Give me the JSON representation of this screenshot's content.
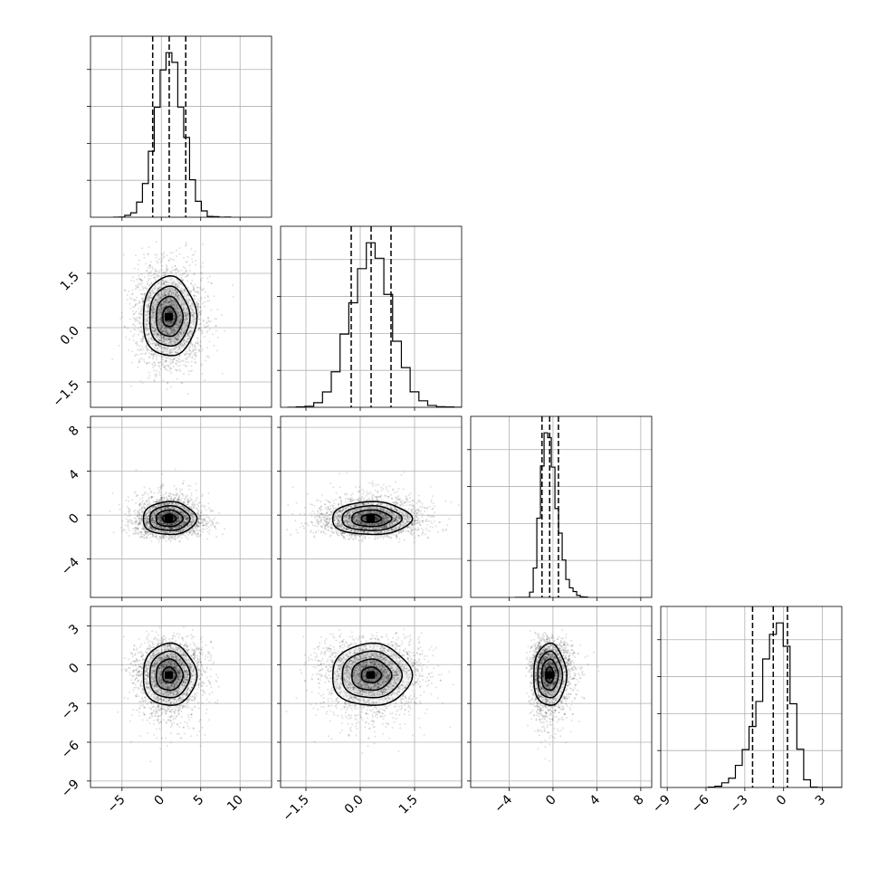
{
  "chart_data": {
    "type": "corner",
    "title": "",
    "variables": [
      {
        "range": [
          -9,
          14
        ],
        "ticks": [
          -5,
          0,
          5,
          10
        ],
        "tick_labels": [
          "−5",
          "0",
          "5",
          "10"
        ],
        "mean": 1.0,
        "sd": 1.7,
        "skew": 0,
        "quantiles": [
          -1.1,
          1.0,
          3.1
        ]
      },
      {
        "range": [
          -2.2,
          2.8
        ],
        "ticks": [
          -1.5,
          0.0,
          1.5
        ],
        "tick_labels": [
          "−1.5",
          "0.0",
          "1.5"
        ],
        "mean": 0.3,
        "sd": 0.55,
        "skew": 0,
        "quantiles": [
          -0.25,
          0.3,
          0.85
        ]
      },
      {
        "range": [
          -7.5,
          9
        ],
        "ticks": [
          -4,
          0,
          4,
          8
        ],
        "tick_labels": [
          "−4",
          "0",
          "4",
          "8"
        ],
        "mean": -0.3,
        "sd": 0.75,
        "skew": 0.4,
        "quantiles": [
          -1.0,
          -0.3,
          0.5
        ]
      },
      {
        "range": [
          -9.5,
          4.5
        ],
        "ticks": [
          -9,
          -6,
          -3,
          0,
          3
        ],
        "tick_labels": [
          "−9",
          "−6",
          "−3",
          "0",
          "3"
        ],
        "mean": -0.8,
        "sd": 1.2,
        "skew": -0.4,
        "quantiles": [
          -2.4,
          -0.8,
          0.3
        ]
      }
    ],
    "histogram_bins": 20,
    "samples_per_panel": 2500,
    "contour_levels_sigma": [
      0.5,
      1.0,
      1.5,
      2.0
    ],
    "quantiles_shown": [
      0.16,
      0.5,
      0.84
    ],
    "grid": true
  }
}
